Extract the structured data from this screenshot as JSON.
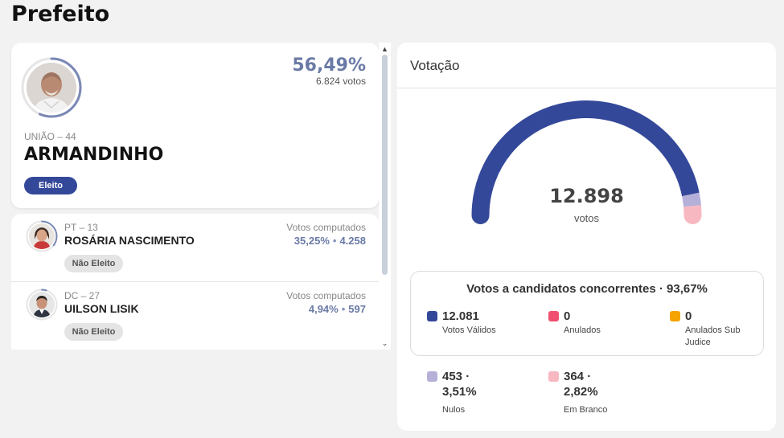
{
  "page": {
    "title": "Prefeito"
  },
  "winner": {
    "party": "UNIÃO – 44",
    "name": "ARMANDINHO",
    "percent": "56,49%",
    "votes": "6.824 votos",
    "status": "Eleito",
    "ring_fraction": 0.5649
  },
  "candidates": [
    {
      "party": "PT – 13",
      "name": "ROSÁRIA NASCIMENTO",
      "votes_label": "Votos computados",
      "percent": "35,25%",
      "votes": "4.258",
      "status": "Não Eleito",
      "ring_fraction": 0.3525
    },
    {
      "party": "DC – 27",
      "name": "UILSON LISIK",
      "votes_label": "Votos computados",
      "percent": "4,94%",
      "votes": "597",
      "status": "Não Eleito",
      "ring_fraction": 0.0494
    }
  ],
  "votacao": {
    "title": "Votação",
    "total": "12.898",
    "total_unit": "votos",
    "gauge_fractions": {
      "validos": 0.9367,
      "nulos": 0.0351,
      "brancos": 0.0282
    },
    "concorrentes_title": "Votos a candidatos concorrentes · 93,67%",
    "stats_in_box": [
      {
        "value": "12.081",
        "label": "Votos Válidos",
        "color": "#34489a"
      },
      {
        "value": "0",
        "label": "Anulados",
        "color": "#f0506e"
      },
      {
        "value": "0",
        "label": "Anulados Sub Judice",
        "color": "#f5a300"
      }
    ],
    "stats_outside": [
      {
        "value": "453 · 3,51%",
        "label": "Nulos",
        "color": "#b4b0d8"
      },
      {
        "value": "364 · 2,82%",
        "label": "Em Branco",
        "color": "#f8b8c2"
      }
    ]
  },
  "colors": {
    "accent": "#34489a",
    "percent_text": "#6a7aa6",
    "ring": "#7a88b5",
    "ring_track": "#e5e5e5"
  }
}
